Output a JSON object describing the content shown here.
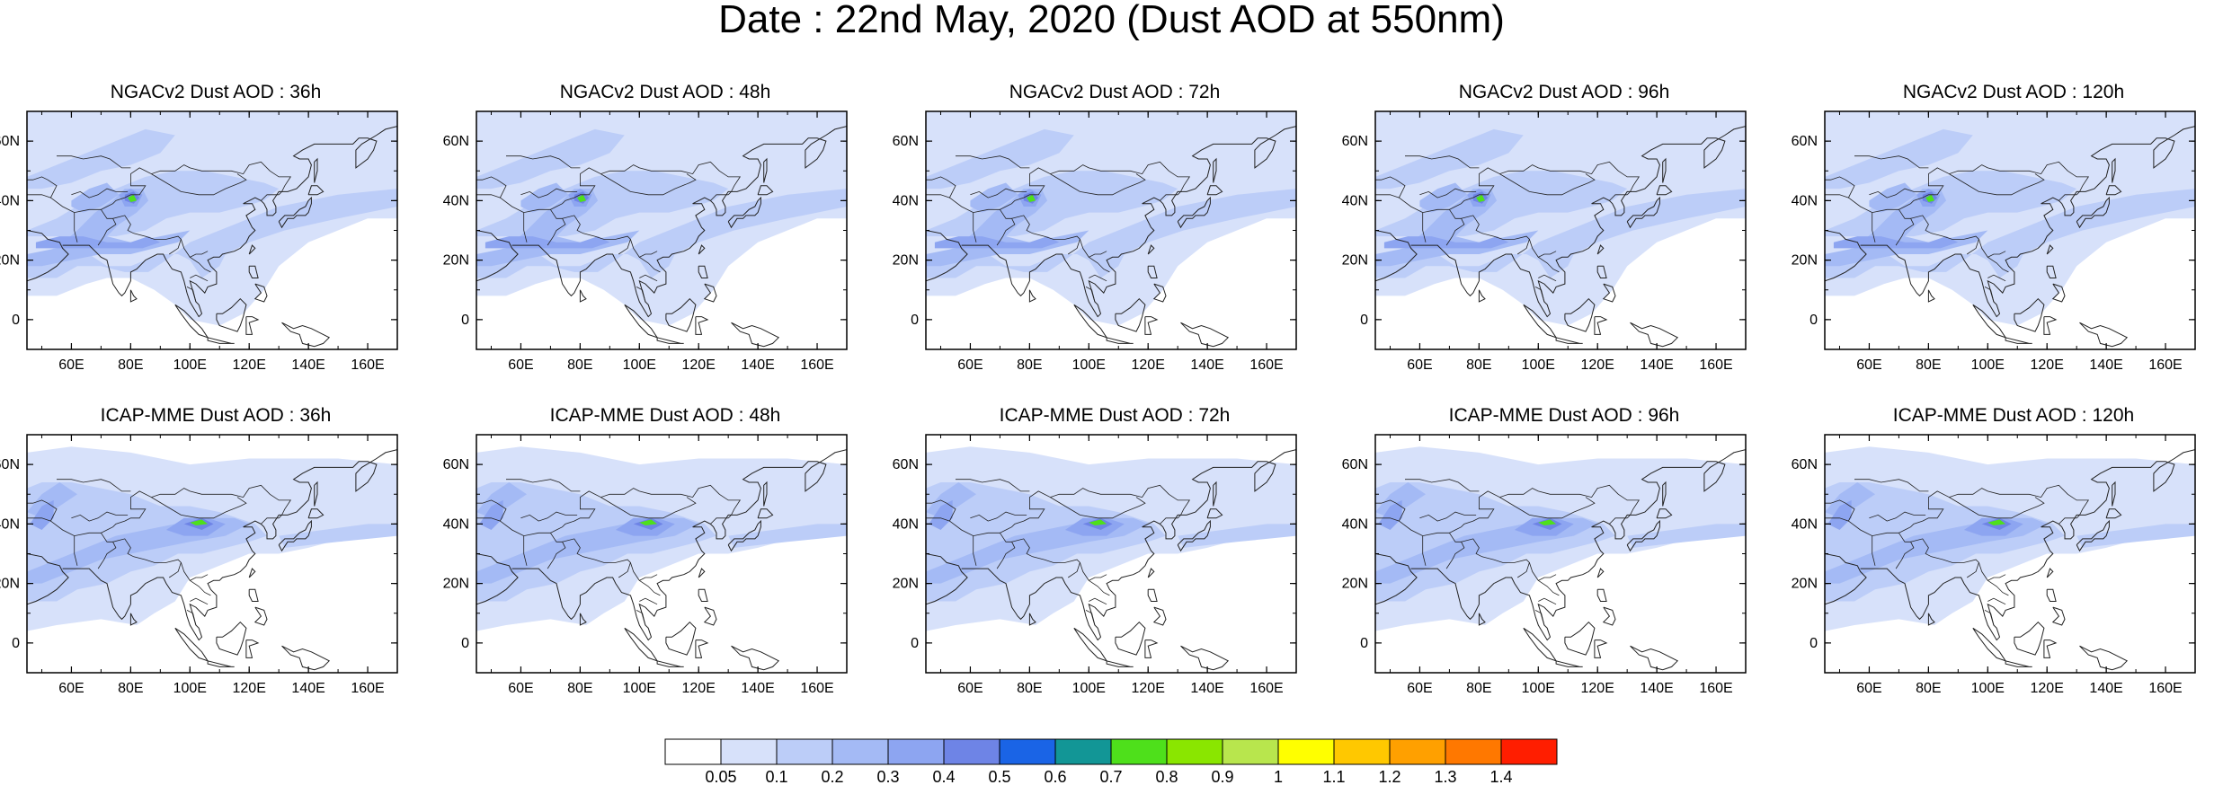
{
  "title": "Date : 22nd May, 2020 (Dust AOD at 550nm)",
  "row_titles": {
    "top": [
      "NGACv2 Dust AOD : 36h",
      "NGACv2 Dust AOD : 48h",
      "NGACv2 Dust AOD : 72h",
      "NGACv2 Dust AOD : 96h",
      "NGACv2 Dust AOD : 120h"
    ],
    "bottom": [
      "ICAP-MME Dust AOD : 36h",
      "ICAP-MME Dust AOD : 48h",
      "ICAP-MME Dust AOD : 72h",
      "ICAP-MME Dust AOD : 96h",
      "ICAP-MME Dust AOD : 120h"
    ]
  },
  "map_extent": {
    "lon": [
      45,
      170
    ],
    "lat": [
      -10,
      70
    ]
  },
  "lon_ticks": [
    "60E",
    "80E",
    "100E",
    "120E",
    "140E",
    "160E"
  ],
  "lat_ticks": [
    "60N",
    "40N",
    "20N",
    "0"
  ],
  "colorbar": {
    "labels": [
      "0.05",
      "0.1",
      "0.2",
      "0.3",
      "0.4",
      "0.5",
      "0.6",
      "0.7",
      "0.8",
      "0.9",
      "1",
      "1.1",
      "1.2",
      "1.3",
      "1.4"
    ],
    "colors": [
      "#ffffff",
      "#d7e1fa",
      "#bccdf8",
      "#a4baf5",
      "#8da5f1",
      "#6e84e6",
      "#1a64e6",
      "#129696",
      "#4ee01b",
      "#8ae600",
      "#b8e64d",
      "#ffff00",
      "#ffc800",
      "#ffa000",
      "#ff7800",
      "#ff1e00"
    ]
  }
}
